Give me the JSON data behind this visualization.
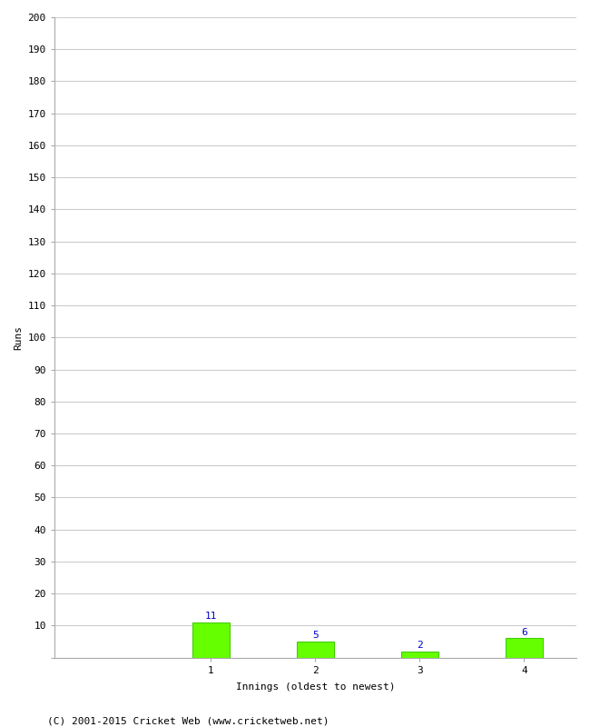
{
  "categories": [
    "1",
    "2",
    "3",
    "4"
  ],
  "values": [
    11,
    5,
    2,
    6
  ],
  "bar_color": "#66ff00",
  "bar_edge_color": "#44cc00",
  "label_color": "#0000cc",
  "ylabel": "Runs",
  "xlabel": "Innings (oldest to newest)",
  "ylim": [
    0,
    200
  ],
  "yticks": [
    0,
    10,
    20,
    30,
    40,
    50,
    60,
    70,
    80,
    90,
    100,
    110,
    120,
    130,
    140,
    150,
    160,
    170,
    180,
    190,
    200
  ],
  "footer": "(C) 2001-2015 Cricket Web (www.cricketweb.net)",
  "label_fontsize": 8,
  "axis_fontsize": 8,
  "footer_fontsize": 8,
  "ylabel_fontsize": 8,
  "xlabel_fontsize": 8,
  "background_color": "#ffffff",
  "grid_color": "#cccccc",
  "bar_width": 0.35,
  "xlim": [
    -0.5,
    4.5
  ]
}
